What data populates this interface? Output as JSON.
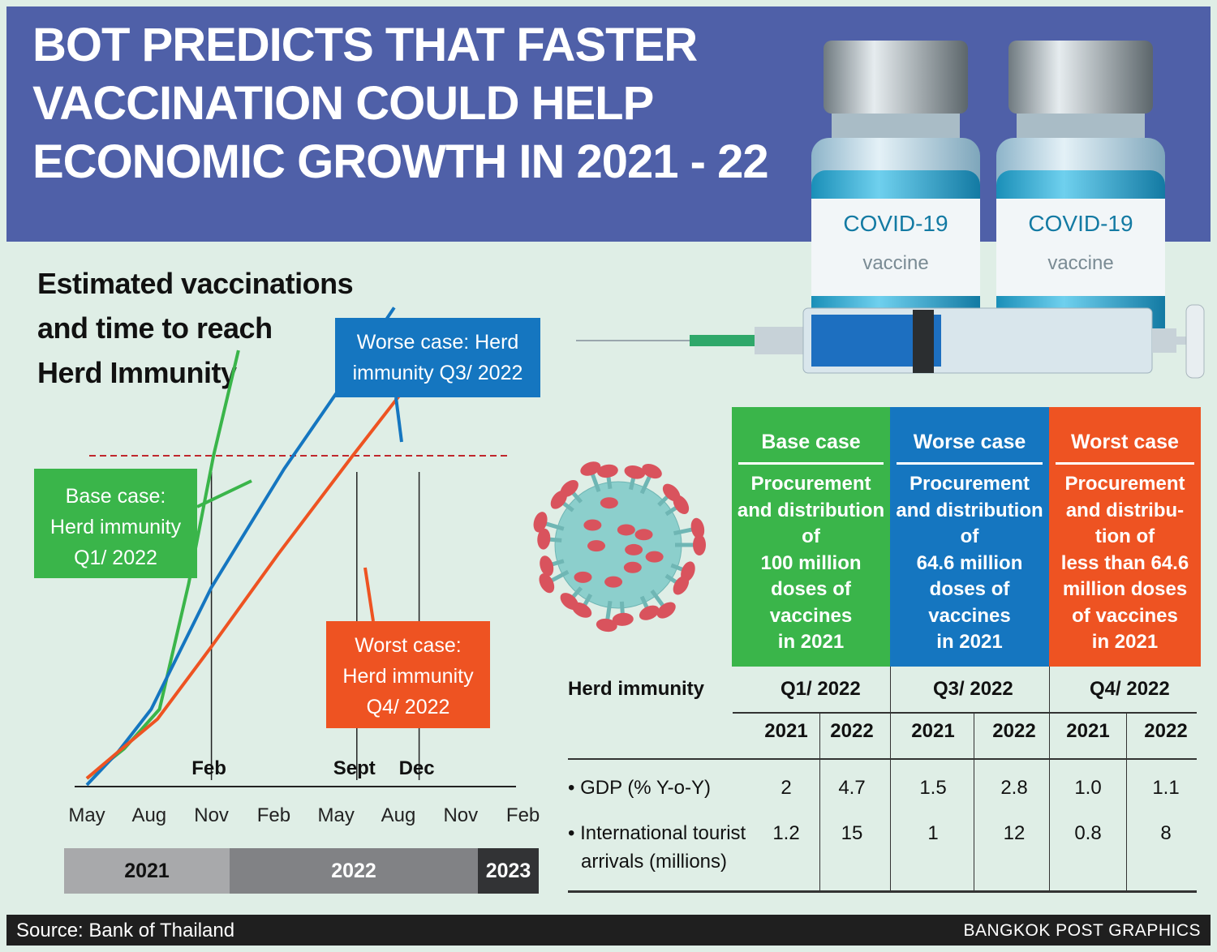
{
  "header": {
    "title_lines": [
      "BOT PREDICTS THAT FASTER",
      "VACCINATION COULD HELP",
      "ECONOMIC GROWTH IN 2021 - 22"
    ],
    "bg_color": "#4f60a8"
  },
  "vials": {
    "label_main": "COVID-19",
    "label_sub": "vaccine",
    "icon": "vaccine-vial-icon"
  },
  "chart_title_lines": [
    "Estimated vaccinations",
    "and time to reach",
    "Herd Immunity"
  ],
  "callouts": {
    "base": [
      "Base case:",
      "Herd immunity",
      "Q1/ 2022"
    ],
    "worse": [
      "Worse case: Herd",
      "immunity Q3/ 2022"
    ],
    "worst": [
      "Worst case:",
      "Herd immunity",
      "Q4/ 2022"
    ]
  },
  "chart_data": {
    "type": "line",
    "title": "Estimated vaccinations and time to reach Herd Immunity",
    "x_ticks": [
      "May",
      "Aug",
      "Nov",
      "Feb",
      "May",
      "Aug",
      "Nov",
      "Feb"
    ],
    "years": [
      "2021",
      "2022",
      "2023"
    ],
    "threshold_label": "Herd immunity",
    "markers": [
      {
        "label": "Feb",
        "month_index": 9
      },
      {
        "label": "Sept",
        "month_index": 16
      },
      {
        "label": "Dec",
        "month_index": 19
      }
    ],
    "series": [
      {
        "name": "Base case",
        "color": "#3ab54a",
        "points": [
          [
            3,
            0.02
          ],
          [
            4.8,
            0.11
          ],
          [
            6.5,
            0.23
          ],
          [
            7.9,
            0.61
          ],
          [
            9.1,
            1.0
          ],
          [
            10.3,
            1.32
          ]
        ]
      },
      {
        "name": "Worse case",
        "color": "#1576c0",
        "points": [
          [
            3,
            0.0
          ],
          [
            4.5,
            0.1
          ],
          [
            6.1,
            0.23
          ],
          [
            9.0,
            0.6
          ],
          [
            12.5,
            0.96
          ],
          [
            16.0,
            1.28
          ],
          [
            17.8,
            1.45
          ]
        ]
      },
      {
        "name": "Worst case",
        "color": "#ee5322",
        "points": [
          [
            3,
            0.02
          ],
          [
            4.5,
            0.1
          ],
          [
            6.4,
            0.2
          ],
          [
            9.0,
            0.42
          ],
          [
            12.2,
            0.7
          ],
          [
            15.8,
            1.0
          ],
          [
            19.0,
            1.26
          ],
          [
            20.0,
            1.35
          ]
        ]
      }
    ],
    "threshold": 1.0
  },
  "cases": [
    {
      "title": "Base case",
      "body": "Procurement\nand distribution\nof\n100 million\ndoses of\nvaccines\nin 2021",
      "color": "#3ab54a"
    },
    {
      "title": "Worse case",
      "body": "Procurement\nand distribution\nof\n64.6 million\ndoses of\nvaccines\nin 2021",
      "color": "#1576c0"
    },
    {
      "title": "Worst case",
      "body": "Procurement\nand distribu-\ntion of\nless than 64.6\nmillion doses\nof vaccines\nin 2021",
      "color": "#ee5322"
    }
  ],
  "table": {
    "row_header": "Herd immunity",
    "quarters": [
      "Q1/ 2022",
      "Q3/ 2022",
      "Q4/ 2022"
    ],
    "years": [
      "2021",
      "2022",
      "2021",
      "2022",
      "2021",
      "2022"
    ],
    "rows": [
      {
        "label": "• GDP (% Y-o-Y)",
        "values": [
          "2",
          "4.7",
          "1.5",
          "2.8",
          "1.0",
          "1.1"
        ]
      },
      {
        "label": "• International tourist",
        "label2": "arrivals (millions)",
        "values": [
          "1.2",
          "15",
          "1",
          "12",
          "0.8",
          "8"
        ]
      }
    ]
  },
  "footer": {
    "source": "Source: Bank of Thailand",
    "credit": "BANGKOK POST GRAPHICS"
  }
}
